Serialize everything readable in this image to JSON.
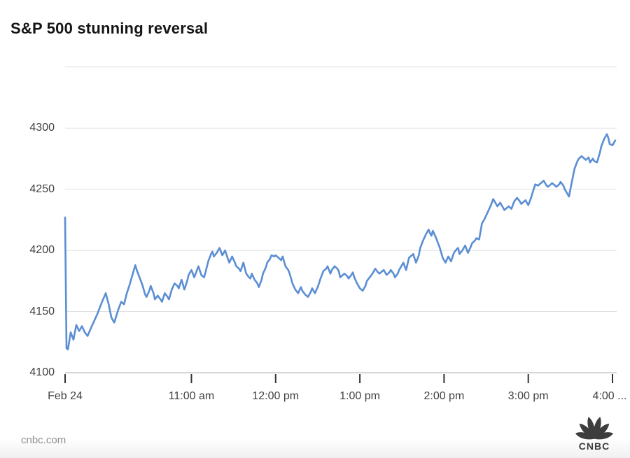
{
  "title": "S&P 500 stunning reversal",
  "footer": {
    "source": "cnbc.com",
    "logo_text": "CNBC"
  },
  "colors": {
    "line_blue": "#5b8ed3",
    "gridline": "#e1e1e1",
    "axis_line": "#c9c9c9",
    "tick_mark": "#343434",
    "axis_text": "#414141",
    "title_text": "#141414",
    "source_text": "#8f8f8f",
    "logo_gray": "#3d3d3d"
  },
  "chart_data": {
    "type": "line",
    "title": "S&P 500 stunning reversal",
    "xlabel": "",
    "ylabel": "",
    "x_unit": "minutes after 9:30 am ET on Feb 24",
    "xlim": [
      0,
      392
    ],
    "ylim": [
      4100,
      4351
    ],
    "grid": true,
    "legend": "none",
    "gridline_values": [
      4350,
      4300,
      4250,
      4200,
      4150
    ],
    "axis_value": 4100,
    "y_ticks": [
      {
        "value": 4300,
        "label": "4300"
      },
      {
        "value": 4250,
        "label": "4250"
      },
      {
        "value": 4200,
        "label": "4200"
      },
      {
        "value": 4150,
        "label": "4150"
      },
      {
        "value": 4100,
        "label": "4100"
      }
    ],
    "x_ticks": [
      {
        "t": 0,
        "label": "Feb 24"
      },
      {
        "t": 90,
        "label": "11:00 am"
      },
      {
        "t": 150,
        "label": "12:00 pm"
      },
      {
        "t": 210,
        "label": "1:00 pm"
      },
      {
        "t": 270,
        "label": "2:00 pm"
      },
      {
        "t": 330,
        "label": "3:00 pm"
      },
      {
        "t": 390,
        "label": "4:00 ..."
      }
    ],
    "series": [
      {
        "name": "S&P 500",
        "color": "#5b8ed3",
        "points": [
          [
            0,
            4227
          ],
          [
            1,
            4120
          ],
          [
            2,
            4119
          ],
          [
            4,
            4133
          ],
          [
            6,
            4127
          ],
          [
            8,
            4139
          ],
          [
            10,
            4134
          ],
          [
            12,
            4138
          ],
          [
            14,
            4133
          ],
          [
            16,
            4130
          ],
          [
            19,
            4138
          ],
          [
            21,
            4143
          ],
          [
            23,
            4148
          ],
          [
            26,
            4157
          ],
          [
            29,
            4165
          ],
          [
            31,
            4156
          ],
          [
            33,
            4145
          ],
          [
            35,
            4141
          ],
          [
            38,
            4152
          ],
          [
            40,
            4158
          ],
          [
            42,
            4156
          ],
          [
            44,
            4165
          ],
          [
            46,
            4172
          ],
          [
            48,
            4180
          ],
          [
            50,
            4188
          ],
          [
            51,
            4184
          ],
          [
            53,
            4178
          ],
          [
            55,
            4172
          ],
          [
            57,
            4164
          ],
          [
            58,
            4162
          ],
          [
            60,
            4167
          ],
          [
            61,
            4171
          ],
          [
            63,
            4165
          ],
          [
            64,
            4160
          ],
          [
            66,
            4163
          ],
          [
            68,
            4160
          ],
          [
            69,
            4158
          ],
          [
            71,
            4165
          ],
          [
            73,
            4162
          ],
          [
            74,
            4160
          ],
          [
            76,
            4168
          ],
          [
            78,
            4173
          ],
          [
            80,
            4171
          ],
          [
            81,
            4169
          ],
          [
            83,
            4176
          ],
          [
            85,
            4168
          ],
          [
            87,
            4175
          ],
          [
            88,
            4180
          ],
          [
            90,
            4184
          ],
          [
            92,
            4178
          ],
          [
            93,
            4181
          ],
          [
            95,
            4187
          ],
          [
            97,
            4180
          ],
          [
            99,
            4178
          ],
          [
            100,
            4182
          ],
          [
            102,
            4191
          ],
          [
            104,
            4197
          ],
          [
            105,
            4199
          ],
          [
            106,
            4195
          ],
          [
            108,
            4198
          ],
          [
            110,
            4202
          ],
          [
            112,
            4196
          ],
          [
            114,
            4200
          ],
          [
            116,
            4193
          ],
          [
            117,
            4190
          ],
          [
            119,
            4195
          ],
          [
            121,
            4190
          ],
          [
            122,
            4187
          ],
          [
            124,
            4185
          ],
          [
            125,
            4183
          ],
          [
            127,
            4190
          ],
          [
            129,
            4181
          ],
          [
            131,
            4178
          ],
          [
            132,
            4177
          ],
          [
            133,
            4181
          ],
          [
            135,
            4176
          ],
          [
            137,
            4173
          ],
          [
            138,
            4170
          ],
          [
            140,
            4176
          ],
          [
            141,
            4181
          ],
          [
            143,
            4186
          ],
          [
            144,
            4190
          ],
          [
            146,
            4193
          ],
          [
            147,
            4196
          ],
          [
            149,
            4195
          ],
          [
            150,
            4196
          ],
          [
            152,
            4194
          ],
          [
            154,
            4192
          ],
          [
            155,
            4195
          ],
          [
            157,
            4187
          ],
          [
            159,
            4184
          ],
          [
            160,
            4181
          ],
          [
            162,
            4173
          ],
          [
            164,
            4168
          ],
          [
            166,
            4165
          ],
          [
            168,
            4170
          ],
          [
            169,
            4167
          ],
          [
            171,
            4164
          ],
          [
            173,
            4162
          ],
          [
            175,
            4166
          ],
          [
            176,
            4169
          ],
          [
            178,
            4165
          ],
          [
            180,
            4170
          ],
          [
            182,
            4177
          ],
          [
            184,
            4183
          ],
          [
            186,
            4185
          ],
          [
            187,
            4187
          ],
          [
            189,
            4181
          ],
          [
            190,
            4184
          ],
          [
            192,
            4187
          ],
          [
            194,
            4185
          ],
          [
            195,
            4183
          ],
          [
            196,
            4178
          ],
          [
            198,
            4180
          ],
          [
            199,
            4181
          ],
          [
            201,
            4179
          ],
          [
            202,
            4177
          ],
          [
            204,
            4180
          ],
          [
            205,
            4182
          ],
          [
            206,
            4178
          ],
          [
            208,
            4173
          ],
          [
            210,
            4169
          ],
          [
            212,
            4167
          ],
          [
            214,
            4171
          ],
          [
            215,
            4175
          ],
          [
            217,
            4178
          ],
          [
            219,
            4181
          ],
          [
            221,
            4185
          ],
          [
            223,
            4182
          ],
          [
            224,
            4181
          ],
          [
            226,
            4183
          ],
          [
            227,
            4184
          ],
          [
            229,
            4180
          ],
          [
            231,
            4182
          ],
          [
            232,
            4184
          ],
          [
            234,
            4181
          ],
          [
            235,
            4178
          ],
          [
            237,
            4181
          ],
          [
            238,
            4184
          ],
          [
            240,
            4188
          ],
          [
            241,
            4190
          ],
          [
            243,
            4184
          ],
          [
            245,
            4194
          ],
          [
            247,
            4196
          ],
          [
            248,
            4197
          ],
          [
            250,
            4190
          ],
          [
            252,
            4196
          ],
          [
            253,
            4202
          ],
          [
            255,
            4208
          ],
          [
            257,
            4213
          ],
          [
            258,
            4215
          ],
          [
            259,
            4217
          ],
          [
            260,
            4214
          ],
          [
            261,
            4212
          ],
          [
            262,
            4216
          ],
          [
            264,
            4211
          ],
          [
            265,
            4208
          ],
          [
            266,
            4205
          ],
          [
            267,
            4202
          ],
          [
            269,
            4194
          ],
          [
            271,
            4190
          ],
          [
            273,
            4195
          ],
          [
            275,
            4191
          ],
          [
            277,
            4198
          ],
          [
            279,
            4201
          ],
          [
            280,
            4202
          ],
          [
            281,
            4197
          ],
          [
            283,
            4200
          ],
          [
            285,
            4204
          ],
          [
            287,
            4198
          ],
          [
            289,
            4203
          ],
          [
            290,
            4206
          ],
          [
            292,
            4208
          ],
          [
            293,
            4210
          ],
          [
            295,
            4209
          ],
          [
            297,
            4222
          ],
          [
            299,
            4226
          ],
          [
            301,
            4231
          ],
          [
            303,
            4236
          ],
          [
            305,
            4242
          ],
          [
            307,
            4238
          ],
          [
            308,
            4236
          ],
          [
            310,
            4239
          ],
          [
            312,
            4235
          ],
          [
            313,
            4233
          ],
          [
            315,
            4235
          ],
          [
            316,
            4236
          ],
          [
            318,
            4234
          ],
          [
            320,
            4240
          ],
          [
            322,
            4243
          ],
          [
            324,
            4240
          ],
          [
            325,
            4238
          ],
          [
            327,
            4240
          ],
          [
            328,
            4241
          ],
          [
            330,
            4237
          ],
          [
            332,
            4243
          ],
          [
            333,
            4247
          ],
          [
            335,
            4254
          ],
          [
            337,
            4253
          ],
          [
            339,
            4255
          ],
          [
            341,
            4257
          ],
          [
            343,
            4253
          ],
          [
            344,
            4252
          ],
          [
            346,
            4254
          ],
          [
            347,
            4255
          ],
          [
            349,
            4253
          ],
          [
            350,
            4252
          ],
          [
            352,
            4254
          ],
          [
            353,
            4256
          ],
          [
            355,
            4253
          ],
          [
            356,
            4250
          ],
          [
            358,
            4246
          ],
          [
            359,
            4244
          ],
          [
            361,
            4256
          ],
          [
            363,
            4267
          ],
          [
            365,
            4273
          ],
          [
            366,
            4275
          ],
          [
            368,
            4277
          ],
          [
            370,
            4275
          ],
          [
            371,
            4274
          ],
          [
            373,
            4276
          ],
          [
            374,
            4272
          ],
          [
            376,
            4275
          ],
          [
            377,
            4273
          ],
          [
            379,
            4272
          ],
          [
            381,
            4280
          ],
          [
            382,
            4285
          ],
          [
            384,
            4291
          ],
          [
            386,
            4295
          ],
          [
            387,
            4292
          ],
          [
            388,
            4287
          ],
          [
            390,
            4286
          ],
          [
            392,
            4290
          ]
        ]
      }
    ]
  }
}
